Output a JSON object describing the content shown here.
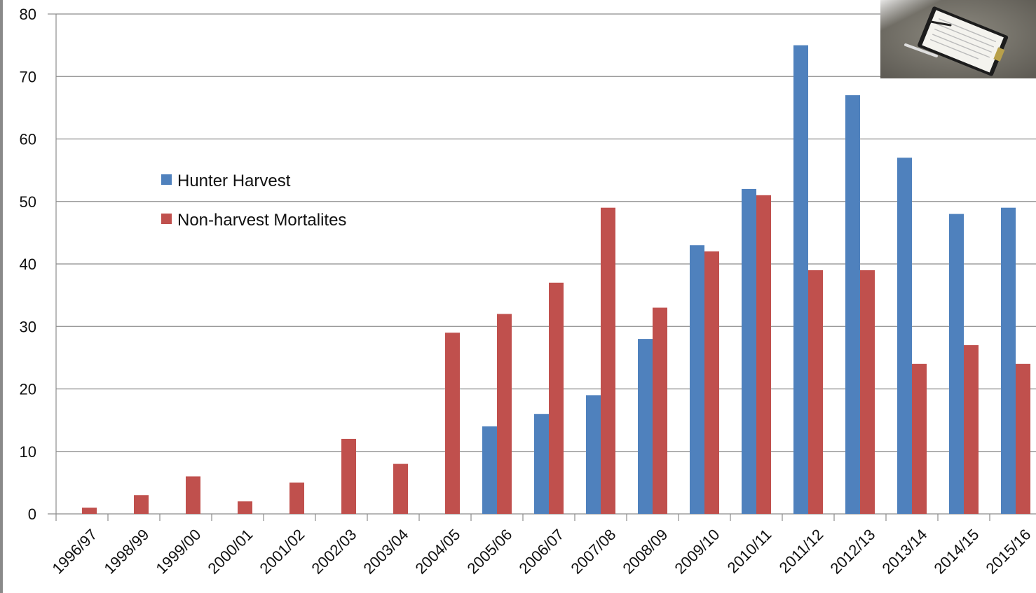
{
  "chart_data": {
    "type": "bar",
    "title": "",
    "xlabel": "",
    "ylabel": "",
    "categories": [
      "1996/97",
      "1998/99",
      "1999/00",
      "2000/01",
      "2001/02",
      "2002/03",
      "2003/04",
      "2004/05",
      "2005/06",
      "2006/07",
      "2007/08",
      "2008/09",
      "2009/10",
      "2010/11",
      "2011/12",
      "2012/13",
      "2013/14",
      "2014/15",
      "2015/16"
    ],
    "series": [
      {
        "name": "Hunter Harvest",
        "color": "#4f81bd",
        "values": [
          0,
          0,
          0,
          0,
          0,
          0,
          0,
          0,
          14,
          16,
          19,
          28,
          43,
          52,
          75,
          67,
          57,
          48,
          49
        ]
      },
      {
        "name": "Non-harvest Mortalites",
        "color": "#c0504d",
        "values": [
          1,
          3,
          6,
          2,
          5,
          12,
          8,
          29,
          32,
          37,
          49,
          33,
          42,
          51,
          39,
          39,
          24,
          27,
          24
        ]
      }
    ],
    "ylim": [
      0,
      80
    ],
    "yticks": [
      0,
      10,
      20,
      30,
      40,
      50,
      60,
      70,
      80
    ],
    "grid": true,
    "legend_position": "upper-left inside plot"
  }
}
